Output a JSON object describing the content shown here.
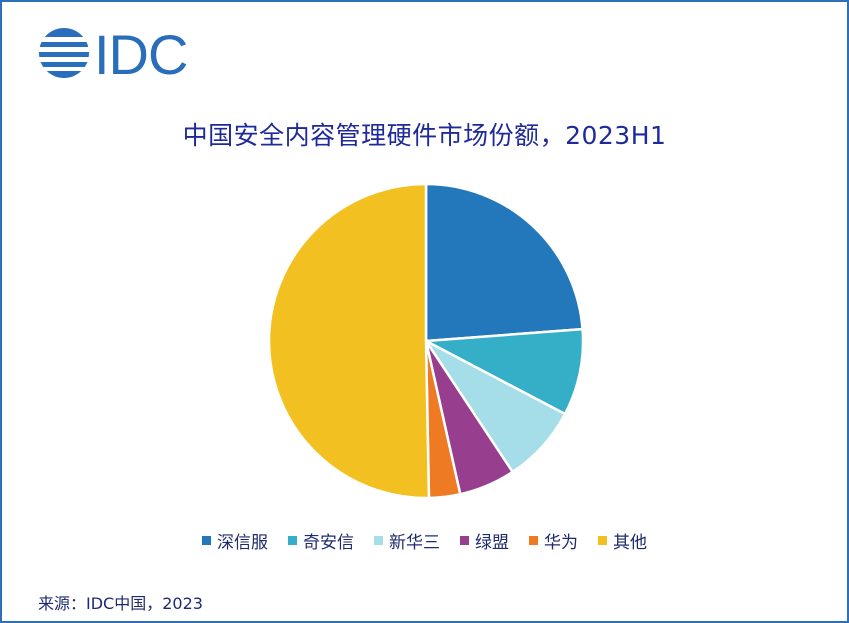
{
  "logo": {
    "text": "IDC",
    "icon": "idc-globe-logo-icon",
    "color": "#2a6ebb"
  },
  "chart_data": {
    "type": "pie",
    "title": "中国安全内容管理硬件市场份额，2023H1",
    "categories": [
      "深信服",
      "奇安信",
      "新华三",
      "绿盟",
      "华为",
      "其他"
    ],
    "values": [
      23.8,
      8.9,
      8.0,
      5.8,
      3.2,
      50.3
    ],
    "colors": [
      "#2278bb",
      "#35aec8",
      "#a5dde8",
      "#983e8f",
      "#ee7a23",
      "#f2c021"
    ],
    "legend_position": "bottom"
  },
  "source": "来源：IDC中国，2023"
}
